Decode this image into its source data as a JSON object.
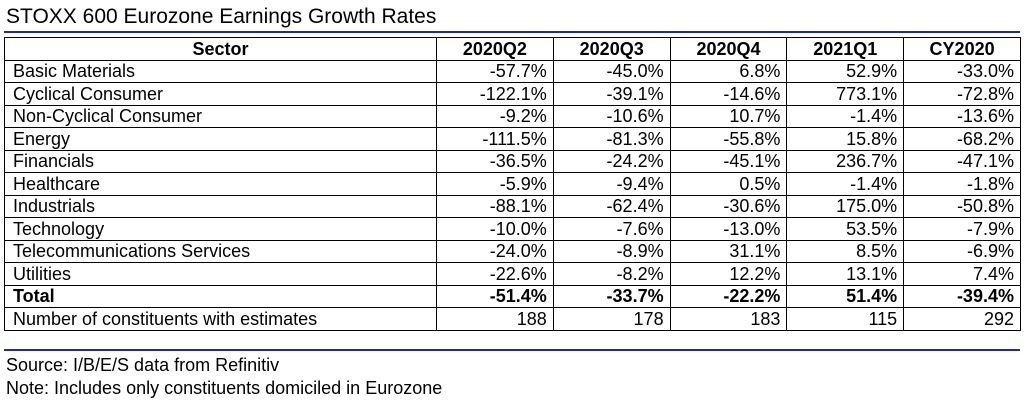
{
  "chart_data": {
    "type": "table",
    "title": "STOXX 600 Eurozone Earnings Growth Rates",
    "columns": [
      "Sector",
      "2020Q2",
      "2020Q3",
      "2020Q4",
      "2021Q1",
      "CY2020"
    ],
    "rows": [
      {
        "sector": "Basic Materials",
        "values": [
          "-57.7%",
          "-45.0%",
          "6.8%",
          "52.9%",
          "-33.0%"
        ]
      },
      {
        "sector": "Cyclical Consumer",
        "values": [
          "-122.1%",
          "-39.1%",
          "-14.6%",
          "773.1%",
          "-72.8%"
        ]
      },
      {
        "sector": "Non-Cyclical Consumer",
        "values": [
          "-9.2%",
          "-10.6%",
          "10.7%",
          "-1.4%",
          "-13.6%"
        ]
      },
      {
        "sector": "Energy",
        "values": [
          "-111.5%",
          "-81.3%",
          "-55.8%",
          "15.8%",
          "-68.2%"
        ]
      },
      {
        "sector": "Financials",
        "values": [
          "-36.5%",
          "-24.2%",
          "-45.1%",
          "236.7%",
          "-47.1%"
        ]
      },
      {
        "sector": "Healthcare",
        "values": [
          "-5.9%",
          "-9.4%",
          "0.5%",
          "-1.4%",
          "-1.8%"
        ]
      },
      {
        "sector": "Industrials",
        "values": [
          "-88.1%",
          "-62.4%",
          "-30.6%",
          "175.0%",
          "-50.8%"
        ]
      },
      {
        "sector": "Technology",
        "values": [
          "-10.0%",
          "-7.6%",
          "-13.0%",
          "53.5%",
          "-7.9%"
        ]
      },
      {
        "sector": "Telecommunications Services",
        "values": [
          "-24.0%",
          "-8.9%",
          "31.1%",
          "8.5%",
          "-6.9%"
        ]
      },
      {
        "sector": "Utilities",
        "values": [
          "-22.6%",
          "-8.2%",
          "12.2%",
          "13.1%",
          "7.4%"
        ]
      }
    ],
    "total": {
      "sector": "Total",
      "values": [
        "-51.4%",
        "-33.7%",
        "-22.2%",
        "51.4%",
        "-39.4%"
      ]
    },
    "constituents": {
      "sector": "Number of constituents with estimates",
      "values": [
        "188",
        "178",
        "183",
        "115",
        "292"
      ]
    }
  },
  "footer": {
    "source": "Source: I/B/E/S data from Refinitiv",
    "note": "Note: Includes only constituents domiciled in Eurozone"
  },
  "colors": {
    "rule": "#1f2a9c"
  }
}
